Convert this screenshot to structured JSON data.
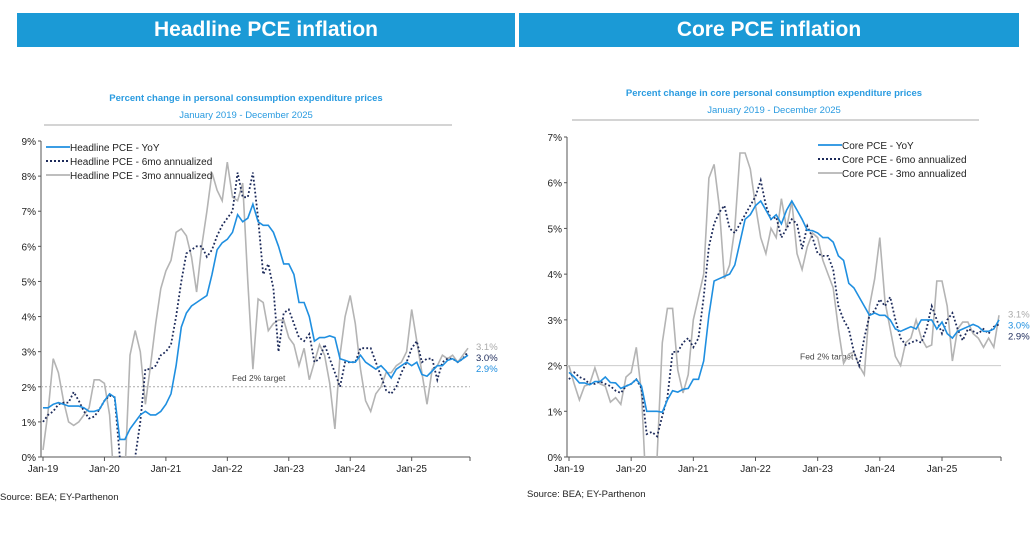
{
  "headers": {
    "left": "Headline PCE inflation",
    "right": "Core PCE inflation"
  },
  "chart_data": [
    {
      "type": "line",
      "title": "Percent change in personal consumption expenditure prices",
      "subtitle": "January 2019 - December 2025",
      "x_start": "2019-01",
      "frequency": "monthly",
      "xticks": [
        "Jan-19",
        "Jan-20",
        "Jan-21",
        "Jan-22",
        "Jan-23",
        "Jan-24",
        "Jan-25"
      ],
      "ylim": [
        0,
        9
      ],
      "yticks": [
        "0%",
        "1%",
        "2%",
        "3%",
        "4%",
        "5%",
        "6%",
        "7%",
        "8%",
        "9%"
      ],
      "reference_line": {
        "value": 2,
        "label": "Fed 2% target",
        "style": "dotted"
      },
      "legend_position": "top-left",
      "series": [
        {
          "name": "Headline PCE - YoY",
          "color": "#1f8fe0",
          "style": "solid",
          "end_label": "2.9%",
          "values": [
            1.4,
            1.4,
            1.5,
            1.55,
            1.5,
            1.45,
            1.45,
            1.45,
            1.4,
            1.3,
            1.3,
            1.35,
            1.6,
            1.8,
            1.7,
            0.5,
            0.5,
            0.8,
            1.0,
            1.2,
            1.3,
            1.2,
            1.2,
            1.3,
            1.5,
            1.8,
            2.6,
            3.7,
            4.1,
            4.3,
            4.4,
            4.5,
            4.6,
            5.2,
            5.9,
            6.1,
            6.2,
            6.4,
            6.9,
            6.7,
            6.8,
            7.2,
            6.7,
            6.6,
            6.6,
            6.4,
            6.0,
            5.5,
            5.5,
            5.2,
            4.4,
            4.4,
            4.0,
            3.3,
            3.4,
            3.4,
            3.45,
            3.4,
            2.8,
            2.75,
            2.7,
            2.7,
            2.9,
            2.7,
            2.6,
            2.5,
            2.6,
            2.45,
            2.25,
            2.5,
            2.6,
            2.7,
            2.6,
            2.7,
            2.35,
            2.3,
            2.45,
            2.6,
            2.6,
            2.75,
            2.8,
            2.7,
            2.8,
            2.9
          ]
        },
        {
          "name": "Headline PCE - 6mo annualized",
          "color": "#1c2a5a",
          "style": "dotted",
          "end_label": "3.0%",
          "values": [
            1.0,
            1.2,
            1.3,
            1.5,
            1.55,
            1.55,
            1.85,
            1.6,
            1.3,
            1.1,
            1.15,
            1.35,
            1.6,
            1.75,
            1.7,
            0.0,
            -1,
            -0.5,
            0.0,
            1.0,
            2.5,
            2.5,
            2.6,
            2.9,
            3.0,
            3.2,
            4.0,
            5.0,
            5.8,
            5.9,
            6.0,
            6.0,
            5.7,
            5.9,
            6.3,
            6.6,
            6.8,
            7.0,
            8.1,
            7.4,
            7.4,
            8.1,
            6.8,
            5.2,
            5.5,
            4.8,
            3.0,
            4.1,
            4.2,
            3.8,
            3.4,
            3.3,
            3.5,
            2.7,
            2.8,
            3.2,
            2.8,
            2.4,
            2.0,
            2.7,
            2.7,
            2.7,
            3.1,
            3.1,
            3.1,
            2.7,
            2.3,
            1.9,
            1.8,
            2.0,
            2.4,
            2.7,
            3.1,
            3.3,
            2.7,
            2.8,
            2.8,
            2.2,
            2.7,
            2.8,
            2.8,
            2.7,
            2.8,
            3.0
          ]
        },
        {
          "name": "Headline PCE - 3mo annualized",
          "color": "#b4b4b4",
          "style": "solid",
          "end_label": "3.1%",
          "values": [
            0.2,
            1.3,
            2.8,
            2.4,
            1.6,
            1.0,
            0.9,
            1.0,
            1.2,
            1.4,
            2.2,
            2.2,
            2.1,
            1.2,
            -1,
            -3,
            -0.5,
            2.9,
            3.6,
            3.0,
            1.5,
            2.6,
            3.8,
            4.8,
            5.3,
            5.6,
            6.4,
            6.5,
            6.3,
            5.7,
            4.7,
            6.0,
            7.0,
            8.1,
            7.6,
            7.3,
            8.4,
            7.4,
            7.3,
            7.8,
            5.0,
            2.5,
            4.5,
            4.4,
            3.6,
            3.8,
            3.9,
            3.9,
            3.4,
            3.2,
            2.6,
            3.1,
            2.2,
            2.7,
            3.2,
            2.9,
            2.1,
            0.8,
            2.9,
            4.0,
            4.6,
            3.8,
            2.5,
            1.6,
            1.3,
            1.8,
            2.0,
            2.4,
            2.4,
            2.6,
            2.7,
            3.0,
            4.2,
            3.3,
            2.4,
            1.5,
            2.5,
            2.6,
            2.9,
            2.8,
            2.9,
            2.7,
            2.9,
            3.1
          ]
        }
      ],
      "source": "Source: BEA; EY-Parthenon"
    },
    {
      "type": "line",
      "title": "Percent change in core personal consumption expenditure prices",
      "subtitle": "January 2019 - December 2025",
      "x_start": "2019-01",
      "frequency": "monthly",
      "xticks": [
        "Jan-19",
        "Jan-20",
        "Jan-21",
        "Jan-22",
        "Jan-23",
        "Jan-24",
        "Jan-25"
      ],
      "ylim": [
        0,
        7
      ],
      "yticks": [
        "0%",
        "1%",
        "2%",
        "3%",
        "4%",
        "5%",
        "6%",
        "7%"
      ],
      "reference_line": {
        "value": 2,
        "label": "Fed 2% target",
        "style": "solid"
      },
      "legend_position": "top-right",
      "series": [
        {
          "name": "Core PCE - YoY",
          "color": "#1f8fe0",
          "style": "solid",
          "end_label": "3.0%",
          "values": [
            1.85,
            1.75,
            1.62,
            1.62,
            1.58,
            1.65,
            1.65,
            1.75,
            1.63,
            1.62,
            1.5,
            1.55,
            1.6,
            1.7,
            1.55,
            1.0,
            1.0,
            1.0,
            0.98,
            1.25,
            1.45,
            1.42,
            1.48,
            1.5,
            1.7,
            1.7,
            2.1,
            3.1,
            3.85,
            3.9,
            3.95,
            4.0,
            4.2,
            4.7,
            5.2,
            5.3,
            5.5,
            5.6,
            5.4,
            5.2,
            5.3,
            5.1,
            5.4,
            5.6,
            5.4,
            5.2,
            4.96,
            4.95,
            4.9,
            4.8,
            4.8,
            4.7,
            4.4,
            4.3,
            3.8,
            3.7,
            3.5,
            3.3,
            3.1,
            3.15,
            3.1,
            3.1,
            3.0,
            2.8,
            2.75,
            2.8,
            2.85,
            2.8,
            3.0,
            3.0,
            3.0,
            2.8,
            2.95,
            2.7,
            2.6,
            2.75,
            2.8,
            2.85,
            2.9,
            2.85,
            2.75,
            2.75,
            2.8,
            3.0
          ]
        },
        {
          "name": "Core PCE - 6mo annualized",
          "color": "#1c2a5a",
          "style": "dotted",
          "end_label": "2.9%",
          "values": [
            1.7,
            1.85,
            1.75,
            1.7,
            1.6,
            1.6,
            1.65,
            1.6,
            1.55,
            1.45,
            1.4,
            1.55,
            1.6,
            1.7,
            1.5,
            0.5,
            0.55,
            0.45,
            0.9,
            1.3,
            2.3,
            2.3,
            2.5,
            2.6,
            2.4,
            2.6,
            3.5,
            4.6,
            5.1,
            5.35,
            5.5,
            5.0,
            4.9,
            5.1,
            5.3,
            5.5,
            5.7,
            6.05,
            5.5,
            5.2,
            5.25,
            4.8,
            5.0,
            5.2,
            5.1,
            4.55,
            5.05,
            4.8,
            4.45,
            4.4,
            4.4,
            4.1,
            3.3,
            3.0,
            2.8,
            2.3,
            2.0,
            2.6,
            3.1,
            3.2,
            3.45,
            3.3,
            3.5,
            3.0,
            2.6,
            2.45,
            2.5,
            2.55,
            2.5,
            2.8,
            3.3,
            3.0,
            2.7,
            3.0,
            3.15,
            2.8,
            2.55,
            2.8,
            2.75,
            2.7,
            2.8,
            2.7,
            2.85,
            2.9
          ]
        },
        {
          "name": "Core PCE - 3mo annualized",
          "color": "#b4b4b4",
          "style": "solid",
          "end_label": "3.1%",
          "values": [
            2.0,
            1.6,
            1.25,
            1.55,
            1.6,
            1.95,
            1.6,
            1.55,
            1.2,
            1.3,
            1.15,
            1.75,
            1.85,
            2.4,
            1.4,
            -1,
            -0.5,
            0,
            2.5,
            3.25,
            3.25,
            1.9,
            1.4,
            1.8,
            3.0,
            3.5,
            4.0,
            6.1,
            6.4,
            5.5,
            3.9,
            4.2,
            5.0,
            6.65,
            6.65,
            6.3,
            5.5,
            4.8,
            4.45,
            5.0,
            4.8,
            5.65,
            5.0,
            5.6,
            4.45,
            4.1,
            4.6,
            4.9,
            4.8,
            4.3,
            4.0,
            3.7,
            2.8,
            2.05,
            2.25,
            2.3,
            2.0,
            1.8,
            3.3,
            3.9,
            4.8,
            3.4,
            2.8,
            2.2,
            2.0,
            2.5,
            2.6,
            3.0,
            2.6,
            2.4,
            2.45,
            3.85,
            3.85,
            3.3,
            2.1,
            2.8,
            2.95,
            2.95,
            2.7,
            2.6,
            2.4,
            2.6,
            2.4,
            3.1
          ]
        }
      ],
      "source": "Source: BEA; EY-Parthenon"
    }
  ]
}
